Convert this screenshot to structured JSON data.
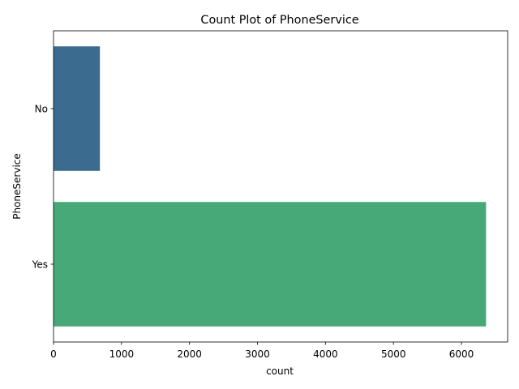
{
  "chart_data": {
    "type": "bar",
    "orientation": "horizontal",
    "title": "Count Plot of PhoneService",
    "xlabel": "count",
    "ylabel": "PhoneService",
    "categories": [
      "No",
      "Yes"
    ],
    "values": [
      682,
      6361
    ],
    "colors": [
      "#3b6b8f",
      "#48a978"
    ],
    "xlim": [
      0,
      6679
    ],
    "xticks": [
      0,
      1000,
      2000,
      3000,
      4000,
      5000,
      6000
    ],
    "grid": false,
    "legend": "none"
  }
}
